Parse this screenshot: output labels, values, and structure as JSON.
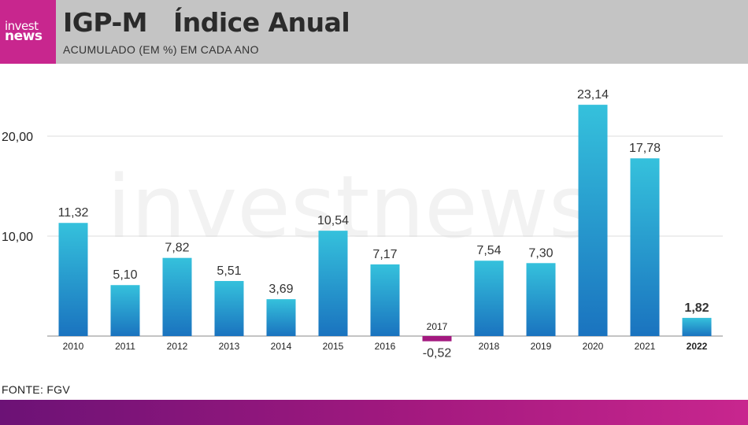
{
  "header": {
    "logo_line1": "invest",
    "logo_line2": "news",
    "title": "IGP-M   Índice Anual",
    "subtitle": "ACUMULADO (EM %) EM CADA ANO"
  },
  "watermark": "investnews",
  "source": "FONTE: FGV",
  "colors": {
    "header_bg": "#c4c4c4",
    "logo_bg": "#c8268e",
    "bar_top": "#35c1dc",
    "bar_bottom": "#1a73bf",
    "negative_bar": "#a3197f",
    "footer_gradient_start": "#6c1276",
    "footer_gradient_end": "#c8268e"
  },
  "chart_data": {
    "type": "bar",
    "categories": [
      "2010",
      "2011",
      "2012",
      "2013",
      "2014",
      "2015",
      "2016",
      "2017",
      "2018",
      "2019",
      "2020",
      "2021",
      "2022"
    ],
    "values": [
      11.32,
      5.1,
      7.82,
      5.51,
      3.69,
      10.54,
      7.17,
      -0.52,
      7.54,
      7.3,
      23.14,
      17.78,
      1.82
    ],
    "value_labels": [
      "11,32",
      "5,10",
      "7,82",
      "5,51",
      "3,69",
      "10,54",
      "7,17",
      "-0,52",
      "7,54",
      "7,30",
      "23,14",
      "17,78",
      "1,82"
    ],
    "highlighted_category": "2022",
    "yticks": [
      10,
      20
    ],
    "ytick_labels": [
      "10,00",
      "20,00"
    ],
    "ylim": [
      -1,
      25
    ],
    "grid": true,
    "title": "IGP-M   Índice Anual",
    "subtitle": "ACUMULADO (EM %) EM CADA ANO",
    "xlabel": "",
    "ylabel": ""
  }
}
